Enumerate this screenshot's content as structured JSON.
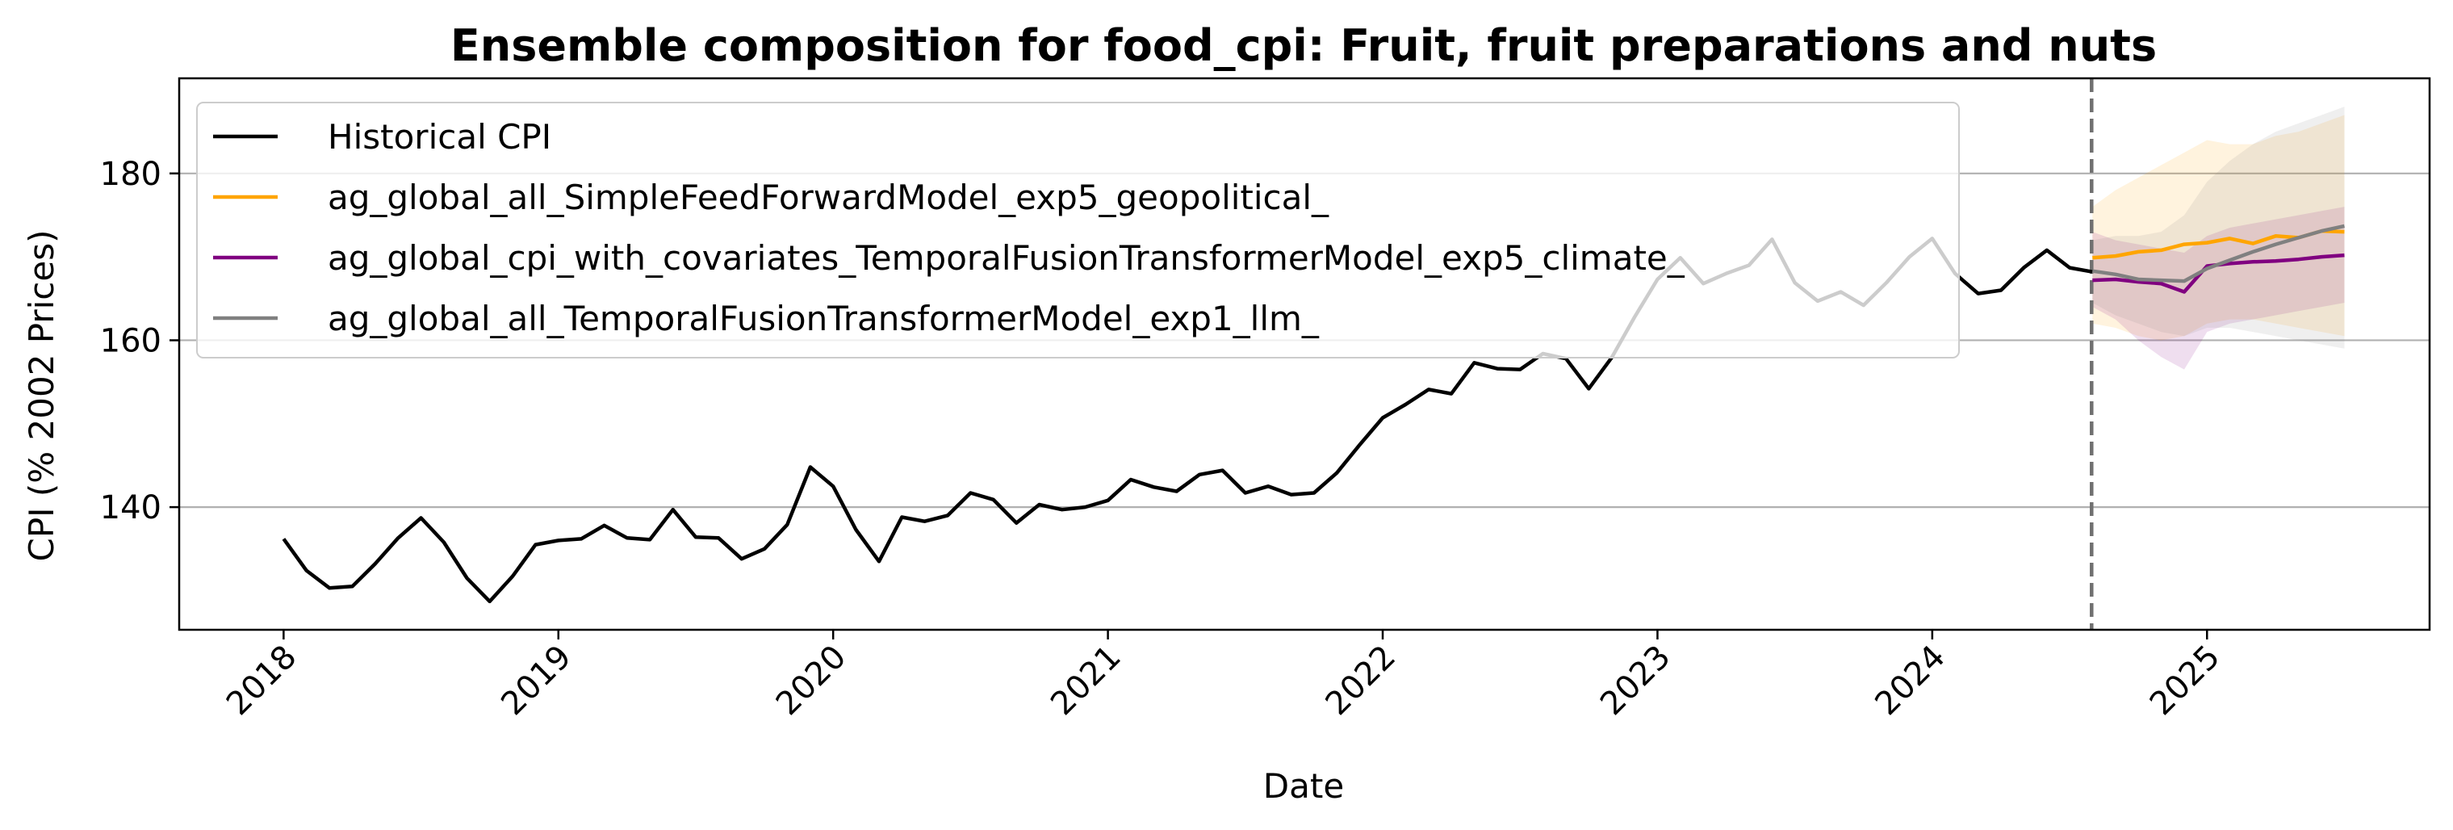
{
  "chart_data": {
    "type": "line",
    "title": "Ensemble composition for food_cpi: Fruit, fruit preparations and nuts",
    "xlabel": "Date",
    "ylabel": "CPI (% 2002 Prices)",
    "xlim": [
      2017.62,
      2025.81
    ],
    "ylim": [
      125.3,
      191.4
    ],
    "x_ticks": [
      2018,
      2019,
      2020,
      2021,
      2022,
      2023,
      2024,
      2025
    ],
    "x_tick_labels": [
      "2018",
      "2019",
      "2020",
      "2021",
      "2022",
      "2023",
      "2024",
      "2025"
    ],
    "y_ticks": [
      140,
      160,
      180
    ],
    "y_tick_labels": [
      "140",
      "160",
      "180"
    ],
    "grid": "horizontal",
    "legend_position": "upper-left",
    "forecast_start": 2024.58,
    "series": [
      {
        "name": "Historical CPI",
        "color": "#000000",
        "x": [
          2018.0,
          2018.083,
          2018.167,
          2018.25,
          2018.333,
          2018.417,
          2018.5,
          2018.583,
          2018.667,
          2018.75,
          2018.833,
          2018.917,
          2019.0,
          2019.083,
          2019.167,
          2019.25,
          2019.333,
          2019.417,
          2019.5,
          2019.583,
          2019.667,
          2019.75,
          2019.833,
          2019.917,
          2020.0,
          2020.083,
          2020.167,
          2020.25,
          2020.333,
          2020.417,
          2020.5,
          2020.583,
          2020.667,
          2020.75,
          2020.833,
          2020.917,
          2021.0,
          2021.083,
          2021.167,
          2021.25,
          2021.333,
          2021.417,
          2021.5,
          2021.583,
          2021.667,
          2021.75,
          2021.833,
          2021.917,
          2022.0,
          2022.083,
          2022.167,
          2022.25,
          2022.333,
          2022.417,
          2022.5,
          2022.583,
          2022.667,
          2022.75,
          2022.833,
          2022.917,
          2023.0,
          2023.083,
          2023.167,
          2023.25,
          2023.333,
          2023.417,
          2023.5,
          2023.583,
          2023.667,
          2023.75,
          2023.833,
          2023.917,
          2024.0,
          2024.083,
          2024.167,
          2024.25,
          2024.333,
          2024.417,
          2024.5,
          2024.583
        ],
        "y": [
          136.2,
          132.4,
          130.3,
          130.5,
          133.2,
          136.3,
          138.7,
          135.8,
          131.5,
          128.7,
          131.7,
          135.5,
          136.0,
          136.2,
          137.8,
          136.3,
          136.1,
          139.7,
          136.4,
          136.3,
          133.8,
          135.0,
          137.9,
          144.8,
          142.5,
          137.3,
          133.5,
          138.8,
          138.3,
          139.0,
          141.7,
          140.9,
          138.1,
          140.3,
          139.7,
          140.0,
          140.8,
          143.3,
          142.4,
          141.9,
          143.9,
          144.4,
          141.7,
          142.5,
          141.5,
          141.7,
          144.1,
          147.5,
          150.7,
          152.3,
          154.1,
          153.6,
          157.3,
          156.6,
          156.5,
          158.4,
          157.8,
          154.2,
          157.9,
          162.8,
          167.3,
          169.9,
          166.8,
          168.0,
          169.0,
          172.1,
          166.9,
          164.7,
          165.8,
          164.2,
          166.9,
          170.0,
          172.2,
          168.0,
          165.6,
          166.0,
          168.7,
          170.8,
          168.7,
          168.2
        ]
      },
      {
        "name": "ag_global_all_SimpleFeedForwardModel_exp5_geopolitical_",
        "color": "#FFA500",
        "x": [
          2024.583,
          2024.667,
          2024.75,
          2024.833,
          2024.917,
          2025.0,
          2025.083,
          2025.167,
          2025.25,
          2025.333,
          2025.417,
          2025.5
        ],
        "y": [
          169.9,
          170.1,
          170.6,
          170.8,
          171.5,
          171.7,
          172.2,
          171.6,
          172.5,
          172.3,
          173.1,
          173.0
        ],
        "upper": [
          176.0,
          178.0,
          179.5,
          181.0,
          182.5,
          184.0,
          183.5,
          183.5,
          184.5,
          185.0,
          186.0,
          187.0
        ],
        "lower": [
          162.0,
          161.5,
          160.5,
          160.0,
          160.5,
          162.0,
          162.5,
          162.5,
          162.0,
          161.5,
          161.0,
          160.5
        ]
      },
      {
        "name": "ag_global_cpi_with_covariates_TemporalFusionTransformerModel_exp5_climate_",
        "color": "#800080",
        "x": [
          2024.583,
          2024.667,
          2024.75,
          2024.833,
          2024.917,
          2025.0,
          2025.083,
          2025.167,
          2025.25,
          2025.333,
          2025.417,
          2025.5
        ],
        "y": [
          167.2,
          167.3,
          167.0,
          166.8,
          165.8,
          168.9,
          169.2,
          169.4,
          169.5,
          169.7,
          170.0,
          170.2
        ],
        "upper": [
          173.0,
          172.0,
          171.5,
          171.0,
          170.5,
          172.5,
          173.5,
          174.0,
          174.5,
          175.0,
          175.5,
          176.0
        ],
        "lower": [
          164.0,
          162.5,
          160.0,
          158.0,
          156.5,
          161.0,
          162.0,
          162.5,
          163.0,
          163.5,
          164.0,
          164.5
        ]
      },
      {
        "name": "ag_global_all_TemporalFusionTransformerModel_exp1_llm_",
        "color": "#808080",
        "x": [
          2024.583,
          2024.667,
          2024.75,
          2024.833,
          2024.917,
          2025.0,
          2025.083,
          2025.167,
          2025.25,
          2025.333,
          2025.417,
          2025.5
        ],
        "y": [
          168.3,
          167.9,
          167.3,
          167.2,
          167.1,
          168.6,
          169.6,
          170.6,
          171.5,
          172.3,
          173.1,
          173.7
        ],
        "upper": [
          172.0,
          172.5,
          172.5,
          173.0,
          175.0,
          179.0,
          181.5,
          183.5,
          185.0,
          186.0,
          187.0,
          188.0
        ],
        "lower": [
          164.5,
          163.0,
          162.0,
          161.0,
          160.5,
          161.5,
          161.5,
          161.0,
          160.5,
          160.0,
          159.5,
          159.0
        ]
      }
    ]
  }
}
